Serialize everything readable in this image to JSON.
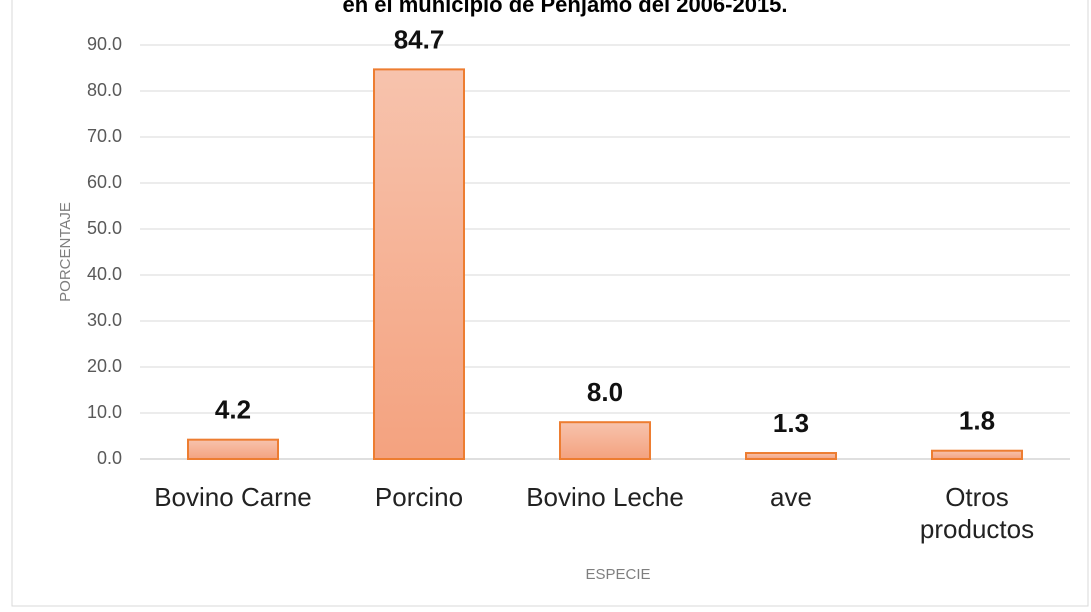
{
  "chart_data": {
    "type": "bar",
    "title": "en el municipio de Pénjamo del 2006-2015.",
    "x_label": "ESPECIE",
    "y_label": "PORCENTAJE",
    "categories": [
      "Bovino Carne",
      "Porcino",
      "Bovino Leche",
      "ave",
      "Otros productos"
    ],
    "values": [
      4.2,
      84.7,
      8.0,
      1.3,
      1.8
    ],
    "value_labels": [
      "4.2",
      "84.7",
      "8.0",
      "1.3",
      "1.8"
    ],
    "color": "#ed7d31",
    "ylim": [
      0,
      90
    ],
    "yticks": [
      {
        "value": 0,
        "label": "0.0"
      },
      {
        "value": 10,
        "label": "10.0"
      },
      {
        "value": 20,
        "label": "20.0"
      },
      {
        "value": 30,
        "label": "30.0"
      },
      {
        "value": 40,
        "label": "40.0"
      },
      {
        "value": 50,
        "label": "50.0"
      },
      {
        "value": 60,
        "label": "60.0"
      },
      {
        "value": 70,
        "label": "70.0"
      },
      {
        "value": 80,
        "label": "80.0"
      },
      {
        "value": 90,
        "label": "90.0"
      }
    ],
    "grid": true
  }
}
